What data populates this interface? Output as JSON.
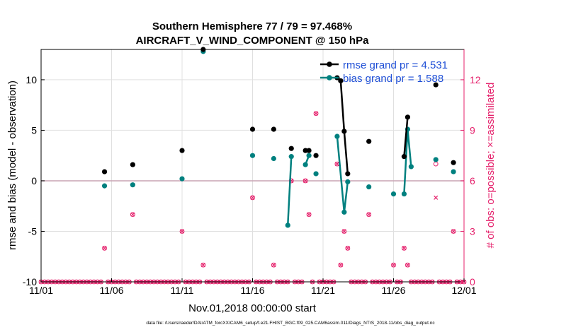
{
  "chart_data": {
    "type": "line",
    "title": "Southern Hemisphere 77 / 79 = 97.468%",
    "subtitle": "AIRCRAFT_V_WIND_COMPONENT @ 150 hPa",
    "xlabel": "Nov.01,2018 00:00:00 start",
    "ylabel": "rmse and bias (model - observation)",
    "y2label": "# of obs: o=possible; ×=assimilated",
    "footer": "data file: /Users/raeder/DAI/ATM_forcXX/CAM6_setup/f.e21.FHIST_BGC.f09_025.CAM6assim.011/Diags_NTrS_2018-11/obs_diag_output.nc",
    "xlim": [
      0,
      30
    ],
    "ylim": [
      -10,
      13
    ],
    "y2lim": [
      0,
      13.8
    ],
    "x_ticks": [
      0,
      5,
      10,
      15,
      20,
      25,
      30
    ],
    "x_tick_labels": [
      "11/01",
      "11/06",
      "11/11",
      "11/16",
      "11/21",
      "11/26",
      "12/01"
    ],
    "y_ticks": [
      -10,
      -5,
      0,
      5,
      10
    ],
    "y_tick_labels": [
      "-10",
      "-5",
      "0",
      "5",
      "10"
    ],
    "y2_ticks": [
      0,
      3,
      6,
      9,
      12
    ],
    "y2_tick_labels": [
      "0",
      "3",
      "6",
      "9",
      "12"
    ],
    "legend": [
      "rmse grand pr = 4.531",
      "bias grand pr = 1.588"
    ],
    "colors": {
      "rmse": "#000000",
      "bias": "#00807f",
      "obs": "#e5206b",
      "zero_line": "#c9a3b4",
      "legend_text": "#1f4fd6",
      "grid": "#e0e0e0"
    },
    "series": [
      {
        "name": "rmse",
        "segments": [
          [
            [
              4.5,
              0.9
            ]
          ],
          [
            [
              6.5,
              1.6
            ]
          ],
          [
            [
              10.0,
              3.0
            ]
          ],
          [
            [
              11.5,
              13.0
            ]
          ],
          [
            [
              15.0,
              5.1
            ]
          ],
          [
            [
              16.5,
              5.1
            ]
          ],
          [
            [
              17.75,
              3.2
            ]
          ],
          [
            [
              18.75,
              3.0
            ],
            [
              19.0,
              3.0
            ]
          ],
          [
            [
              19.5,
              2.5
            ]
          ],
          [
            [
              21.0,
              10.2
            ],
            [
              21.25,
              9.9
            ],
            [
              21.5,
              4.9
            ],
            [
              21.75,
              0.7
            ]
          ],
          [
            [
              23.25,
              3.9
            ]
          ],
          [
            [
              25.75,
              2.4
            ],
            [
              26.0,
              6.3
            ]
          ],
          [
            [
              28.0,
              9.5
            ]
          ],
          [
            [
              29.25,
              1.8
            ]
          ]
        ]
      },
      {
        "name": "bias",
        "segments": [
          [
            [
              4.5,
              -0.5
            ]
          ],
          [
            [
              6.5,
              -0.4
            ]
          ],
          [
            [
              10.0,
              0.2
            ]
          ],
          [
            [
              11.5,
              12.8
            ]
          ],
          [
            [
              15.0,
              2.5
            ]
          ],
          [
            [
              16.5,
              2.2
            ]
          ],
          [
            [
              17.5,
              -4.4
            ],
            [
              17.75,
              2.4
            ]
          ],
          [
            [
              18.75,
              1.6
            ],
            [
              19.0,
              2.5
            ]
          ],
          [
            [
              19.5,
              0.7
            ]
          ],
          [
            [
              21.0,
              4.4
            ],
            [
              21.5,
              -3.1
            ],
            [
              21.75,
              -0.1
            ]
          ],
          [
            [
              23.25,
              -0.6
            ]
          ],
          [
            [
              25.0,
              -1.3
            ]
          ],
          [
            [
              25.75,
              -1.3
            ],
            [
              26.0,
              5.1
            ],
            [
              26.25,
              1.4
            ]
          ],
          [
            [
              28.0,
              2.1
            ]
          ],
          [
            [
              29.25,
              0.9
            ]
          ]
        ]
      }
    ],
    "obs_possible": [
      [
        4.5,
        2
      ],
      [
        6.5,
        4
      ],
      [
        10.0,
        3
      ],
      [
        11.5,
        1
      ],
      [
        15.0,
        5
      ],
      [
        16.5,
        1
      ],
      [
        17.75,
        6
      ],
      [
        18.75,
        6
      ],
      [
        19.0,
        4
      ],
      [
        19.5,
        10
      ],
      [
        21.0,
        7
      ],
      [
        21.25,
        1
      ],
      [
        21.5,
        3
      ],
      [
        21.75,
        2
      ],
      [
        23.25,
        4
      ],
      [
        25.0,
        1
      ],
      [
        25.75,
        2
      ],
      [
        26.0,
        1
      ],
      [
        28.0,
        7
      ],
      [
        29.25,
        3
      ]
    ],
    "obs_assimilated": [
      [
        4.5,
        2
      ],
      [
        6.5,
        4
      ],
      [
        10.0,
        3
      ],
      [
        11.5,
        1
      ],
      [
        15.0,
        5
      ],
      [
        16.5,
        1
      ],
      [
        17.75,
        6
      ],
      [
        18.75,
        6
      ],
      [
        19.0,
        4
      ],
      [
        19.5,
        10
      ],
      [
        21.0,
        7
      ],
      [
        21.25,
        1
      ],
      [
        21.5,
        3
      ],
      [
        21.75,
        2
      ],
      [
        23.25,
        4
      ],
      [
        25.0,
        1
      ],
      [
        25.75,
        2
      ],
      [
        26.0,
        1
      ],
      [
        28.0,
        5
      ],
      [
        29.25,
        3
      ]
    ],
    "zero_count_step": 0.25
  }
}
